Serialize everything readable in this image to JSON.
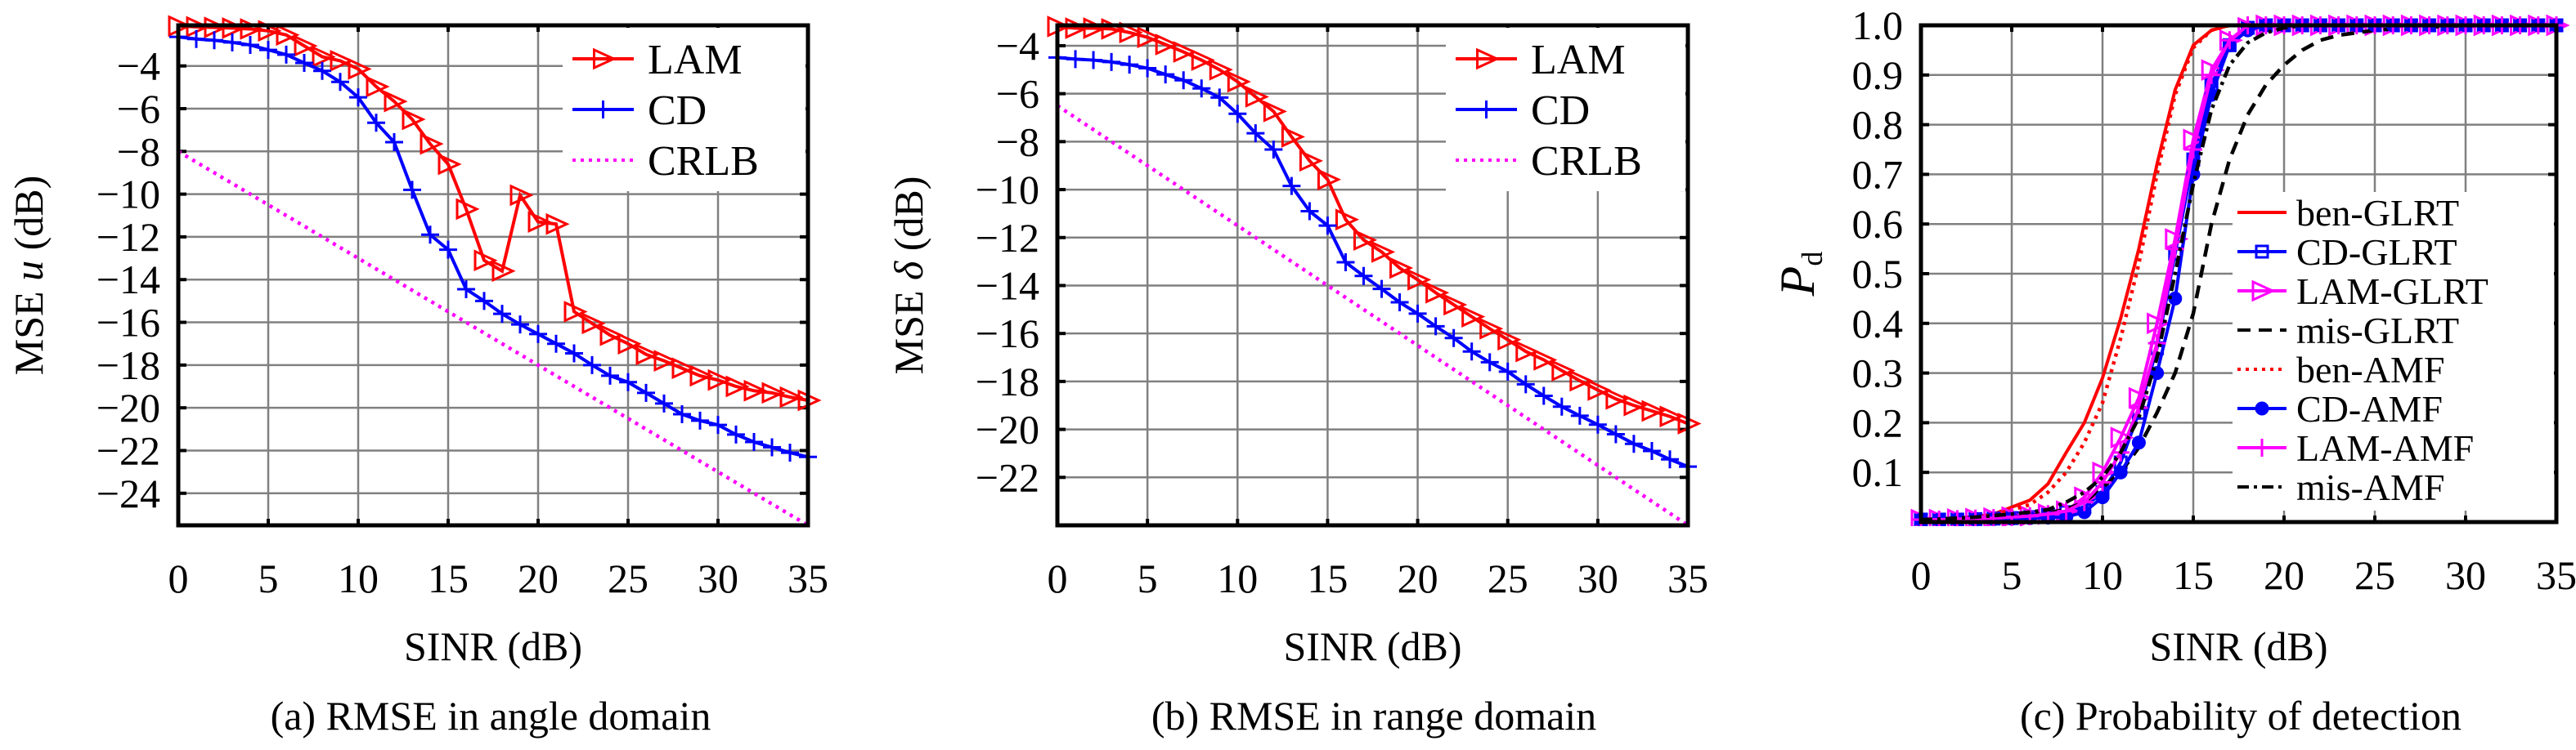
{
  "chart_data": [
    {
      "type": "line",
      "caption": "(a) RMSE in angle domain",
      "xlabel": "SINR (dB)",
      "ylabel": "MSE",
      "ylabel_symbol": "u",
      "ylabel_sub": "",
      "ylabel_unit": "(dB)",
      "xlim": [
        0,
        35
      ],
      "ylim": [
        -25.5,
        -2.1
      ],
      "xtick_labels": [
        "0",
        "5",
        "10",
        "15",
        "20",
        "25",
        "30",
        "35"
      ],
      "ytick_labels": [
        "−4",
        "−6",
        "−8",
        "−10",
        "−12",
        "−14",
        "−16",
        "−18",
        "−20",
        "−22",
        "−24"
      ],
      "grid": true,
      "legend_placement": "top-right",
      "x": [
        0,
        1,
        2,
        3,
        4,
        5,
        6,
        7,
        8,
        9,
        10,
        11,
        12,
        13,
        14,
        15,
        16,
        17,
        18,
        19,
        20,
        21,
        22,
        23,
        24,
        25,
        26,
        27,
        28,
        29,
        30,
        31,
        32,
        33,
        34,
        35
      ],
      "series": [
        {
          "name": "LAM",
          "color": "#ff0000",
          "marker": "triangle-right",
          "dash": "solid",
          "values": [
            -2.13,
            -2.17,
            -2.2,
            -2.23,
            -2.27,
            -2.36,
            -2.55,
            -3.06,
            -3.57,
            -3.76,
            -4.14,
            -4.97,
            -5.66,
            -6.5,
            -7.65,
            -8.6,
            -10.7,
            -13.1,
            -13.6,
            -10.05,
            -11.3,
            -11.4,
            -15.5,
            -16.05,
            -16.6,
            -17.0,
            -17.5,
            -17.8,
            -18.15,
            -18.5,
            -18.7,
            -19.0,
            -19.2,
            -19.3,
            -19.5,
            -19.65
          ]
        },
        {
          "name": "CD",
          "color": "#0000ff",
          "marker": "plus",
          "dash": "solid",
          "values": [
            -2.64,
            -2.74,
            -2.8,
            -2.9,
            -3.02,
            -3.25,
            -3.47,
            -3.86,
            -4.23,
            -4.75,
            -5.47,
            -6.66,
            -7.57,
            -9.8,
            -11.9,
            -12.6,
            -14.45,
            -15.0,
            -15.6,
            -16.1,
            -16.55,
            -17.0,
            -17.45,
            -18.0,
            -18.5,
            -18.8,
            -19.3,
            -19.8,
            -20.3,
            -20.6,
            -20.8,
            -21.25,
            -21.6,
            -21.85,
            -22.1,
            -22.3
          ]
        },
        {
          "name": "CRLB",
          "color": "#ff00ff",
          "marker": "none",
          "dash": "dotted",
          "values": [
            -8,
            -8.5,
            -9,
            -9.5,
            -10,
            -10.5,
            -11,
            -11.5,
            -12,
            -12.5,
            -13,
            -13.5,
            -14,
            -14.5,
            -15,
            -15.5,
            -16,
            -16.5,
            -17,
            -17.5,
            -18,
            -18.5,
            -19,
            -19.5,
            -20,
            -20.5,
            -21,
            -21.5,
            -22,
            -22.5,
            -23,
            -23.5,
            -24,
            -24.5,
            -25,
            -25.5
          ]
        }
      ]
    },
    {
      "type": "line",
      "caption": "(b) RMSE in range domain",
      "xlabel": "SINR (dB)",
      "ylabel": "MSE",
      "ylabel_symbol": "δ",
      "ylabel_sub": "",
      "ylabel_unit": "(dB)",
      "xlim": [
        0,
        35
      ],
      "ylim": [
        -24,
        -3.15
      ],
      "xtick_labels": [
        "0",
        "5",
        "10",
        "15",
        "20",
        "25",
        "30",
        "35"
      ],
      "ytick_labels": [
        "−4",
        "−6",
        "−8",
        "−10",
        "−12",
        "−14",
        "−16",
        "−18",
        "−20",
        "−22"
      ],
      "grid": true,
      "legend_placement": "top-right",
      "x": [
        0,
        1,
        2,
        3,
        4,
        5,
        6,
        7,
        8,
        9,
        10,
        11,
        12,
        13,
        14,
        15,
        16,
        17,
        18,
        19,
        20,
        21,
        22,
        23,
        24,
        25,
        26,
        27,
        28,
        29,
        30,
        31,
        32,
        33,
        34,
        35
      ],
      "series": [
        {
          "name": "LAM",
          "color": "#ff0000",
          "marker": "triangle-right",
          "dash": "solid",
          "values": [
            -3.2,
            -3.27,
            -3.27,
            -3.3,
            -3.45,
            -3.65,
            -3.95,
            -4.26,
            -4.6,
            -5.0,
            -5.5,
            -6.13,
            -6.74,
            -7.8,
            -8.8,
            -9.58,
            -11.25,
            -12.1,
            -12.6,
            -13.27,
            -13.76,
            -14.3,
            -14.8,
            -15.3,
            -15.8,
            -16.26,
            -16.75,
            -17.1,
            -17.55,
            -17.97,
            -18.36,
            -18.73,
            -19.0,
            -19.23,
            -19.46,
            -19.76
          ]
        },
        {
          "name": "CD",
          "color": "#0000ff",
          "marker": "plus",
          "dash": "solid",
          "values": [
            -4.49,
            -4.56,
            -4.6,
            -4.68,
            -4.79,
            -4.94,
            -5.2,
            -5.44,
            -5.78,
            -6.16,
            -6.84,
            -7.65,
            -8.33,
            -9.85,
            -10.9,
            -11.5,
            -13.03,
            -13.6,
            -14.14,
            -14.7,
            -15.17,
            -15.7,
            -16.19,
            -16.75,
            -17.2,
            -17.59,
            -18.12,
            -18.6,
            -19.05,
            -19.43,
            -19.8,
            -20.2,
            -20.6,
            -20.9,
            -21.25,
            -21.55
          ]
        },
        {
          "name": "CRLB",
          "color": "#ff00ff",
          "marker": "none",
          "dash": "dotted",
          "values": [
            -6.5,
            -7,
            -7.5,
            -8,
            -8.5,
            -9,
            -9.5,
            -10,
            -10.5,
            -11,
            -11.5,
            -12,
            -12.5,
            -13,
            -13.5,
            -14,
            -14.5,
            -15,
            -15.5,
            -16,
            -16.5,
            -17,
            -17.5,
            -18,
            -18.5,
            -19,
            -19.5,
            -20,
            -20.5,
            -21,
            -21.5,
            -22,
            -22.5,
            -23,
            -23.5,
            -24
          ]
        }
      ]
    },
    {
      "type": "line",
      "caption": "(c) Probability of detection",
      "xlabel": "SINR (dB)",
      "ylabel": "",
      "ylabel_symbol": "P",
      "ylabel_sub": "d",
      "ylabel_unit": "",
      "xlim": [
        0,
        35
      ],
      "ylim": [
        0,
        1
      ],
      "xtick_labels": [
        "0",
        "5",
        "10",
        "15",
        "20",
        "25",
        "30",
        "35"
      ],
      "ytick_labels": [
        "0.1",
        "0.2",
        "0.3",
        "0.4",
        "0.5",
        "0.6",
        "0.7",
        "0.8",
        "0.9",
        "1.0"
      ],
      "grid": true,
      "legend_placement": "right",
      "x": [
        0,
        1,
        2,
        3,
        4,
        5,
        6,
        7,
        8,
        9,
        10,
        11,
        12,
        13,
        14,
        15,
        16,
        17,
        18,
        19,
        20,
        21,
        22,
        23,
        24,
        25,
        26,
        27,
        28,
        29,
        30,
        31,
        32,
        33,
        34,
        35
      ],
      "series": [
        {
          "name": "ben-GLRT",
          "color": "#ff0000",
          "marker": "none",
          "dash": "solid",
          "values": [
            0.005,
            0.006,
            0.008,
            0.011,
            0.016,
            0.03,
            0.044,
            0.077,
            0.14,
            0.2,
            0.29,
            0.41,
            0.55,
            0.72,
            0.87,
            0.96,
            0.99,
            1,
            1,
            1,
            1,
            1,
            1,
            1,
            1,
            1,
            1,
            1,
            1,
            1,
            1,
            1,
            1,
            1,
            1,
            1
          ]
        },
        {
          "name": "CD-GLRT",
          "color": "#0000ff",
          "marker": "square",
          "dash": "solid",
          "values": [
            0.005,
            0.005,
            0.005,
            0.006,
            0.007,
            0.008,
            0.01,
            0.015,
            0.02,
            0.03,
            0.06,
            0.12,
            0.22,
            0.35,
            0.54,
            0.73,
            0.88,
            0.96,
            0.995,
            1,
            1,
            1,
            1,
            1,
            1,
            1,
            1,
            1,
            1,
            1,
            1,
            1,
            1,
            1,
            1,
            1
          ]
        },
        {
          "name": "LAM-GLRT",
          "color": "#ff00ff",
          "marker": "triangle-right",
          "dash": "solid",
          "values": [
            0.005,
            0.005,
            0.006,
            0.007,
            0.008,
            0.01,
            0.012,
            0.016,
            0.022,
            0.05,
            0.1,
            0.17,
            0.25,
            0.4,
            0.57,
            0.77,
            0.91,
            0.97,
            0.995,
            1,
            1,
            1,
            1,
            1,
            1,
            1,
            1,
            1,
            1,
            1,
            1,
            1,
            1,
            1,
            1,
            1
          ]
        },
        {
          "name": "mis-GLRT",
          "color": "#000000",
          "marker": "none",
          "dash": "dashed",
          "values": [
            0.005,
            0.005,
            0.006,
            0.007,
            0.008,
            0.01,
            0.013,
            0.018,
            0.026,
            0.04,
            0.07,
            0.1,
            0.15,
            0.22,
            0.3,
            0.42,
            0.6,
            0.73,
            0.82,
            0.88,
            0.92,
            0.95,
            0.97,
            0.98,
            0.985,
            0.99,
            0.993,
            0.995,
            0.997,
            0.998,
            1,
            1,
            1,
            1,
            1,
            1
          ]
        },
        {
          "name": "ben-AMF",
          "color": "#ff0000",
          "marker": "none",
          "dash": "dotted",
          "values": [
            0.005,
            0.006,
            0.007,
            0.01,
            0.014,
            0.025,
            0.035,
            0.06,
            0.1,
            0.16,
            0.24,
            0.37,
            0.52,
            0.7,
            0.86,
            0.955,
            0.99,
            1,
            1,
            1,
            1,
            1,
            1,
            1,
            1,
            1,
            1,
            1,
            1,
            1,
            1,
            1,
            1,
            1,
            1,
            1
          ]
        },
        {
          "name": "CD-AMF",
          "color": "#0000ff",
          "marker": "star",
          "dash": "solid",
          "values": [
            0.005,
            0.005,
            0.005,
            0.005,
            0.006,
            0.007,
            0.008,
            0.009,
            0.01,
            0.02,
            0.05,
            0.1,
            0.16,
            0.3,
            0.45,
            0.7,
            0.86,
            0.96,
            0.99,
            1,
            1,
            1,
            1,
            1,
            1,
            1,
            1,
            1,
            1,
            1,
            1,
            1,
            1,
            1,
            1,
            1
          ]
        },
        {
          "name": "LAM-AMF",
          "color": "#ff00ff",
          "marker": "plus",
          "dash": "solid",
          "values": [
            0.005,
            0.005,
            0.006,
            0.007,
            0.008,
            0.01,
            0.012,
            0.016,
            0.022,
            0.04,
            0.08,
            0.14,
            0.23,
            0.36,
            0.55,
            0.75,
            0.9,
            0.97,
            1,
            1,
            1,
            1,
            1,
            1,
            1,
            1,
            1,
            1,
            1,
            1,
            1,
            1,
            1,
            1,
            1,
            1
          ]
        },
        {
          "name": "mis-AMF",
          "color": "#000000",
          "marker": "none",
          "dash": "dashdot",
          "values": [
            0.005,
            0.006,
            0.008,
            0.01,
            0.013,
            0.016,
            0.02,
            0.025,
            0.04,
            0.06,
            0.09,
            0.14,
            0.21,
            0.33,
            0.5,
            0.68,
            0.83,
            0.92,
            0.965,
            0.985,
            0.995,
            1,
            1,
            1,
            1,
            1,
            1,
            1,
            1,
            1,
            1,
            1,
            1,
            1,
            1,
            1
          ]
        }
      ]
    }
  ]
}
